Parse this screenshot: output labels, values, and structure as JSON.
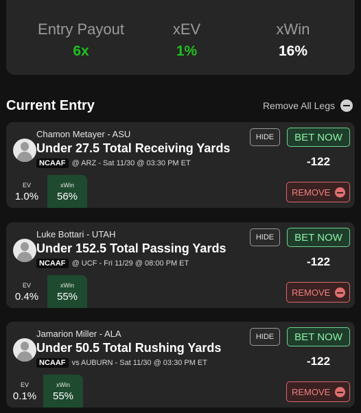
{
  "summary": {
    "payout_label": "Entry Payout",
    "payout_value": "6x",
    "xev_label": "xEV",
    "xev_value": "1%",
    "xwin_label": "xWin",
    "xwin_value": "16%",
    "colors": {
      "positive": "#1fbf1f"
    }
  },
  "entry": {
    "title": "Current Entry",
    "remove_all_label": "Remove All Legs"
  },
  "buttons": {
    "hide": "HIDE",
    "bet": "BET NOW",
    "remove": "REMOVE"
  },
  "legs": [
    {
      "player": "Chamon Metayer - ASU",
      "market": "Under 27.5 Total Receiving Yards",
      "league": "NCAAF",
      "game": "@ ARZ - Sat 11/30 @ 03:30 PM ET",
      "odds": "-122",
      "ev_label": "EV",
      "ev": "1.0%",
      "xwin_label": "xWin",
      "xwin": "56%"
    },
    {
      "player": "Luke Bottari - UTAH",
      "market": "Under 152.5 Total Passing Yards",
      "league": "NCAAF",
      "game": "@ UCF - Fri 11/29 @ 08:00 PM ET",
      "odds": "-122",
      "ev_label": "EV",
      "ev": "0.4%",
      "xwin_label": "xWin",
      "xwin": "55%"
    },
    {
      "player": "Jamarion Miller - ALA",
      "market": "Under 50.5 Total Rushing Yards",
      "league": "NCAAF",
      "game": "vs AUBURN - Sat 11/30 @ 03:30 PM ET",
      "odds": "-122",
      "ev_label": "EV",
      "ev": "0.1%",
      "xwin_label": "xWin",
      "xwin": "55%"
    }
  ]
}
